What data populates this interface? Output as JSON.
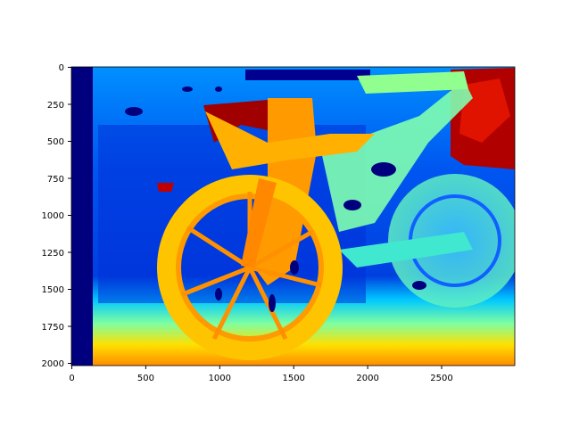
{
  "figure": {
    "image_description_icon": "depth-map-bicycle",
    "colormap": [
      "#00007f",
      "#0000ff",
      "#007fff",
      "#00ffff",
      "#7fff7f",
      "#ffff00",
      "#ff7f00",
      "#ff0000",
      "#7f0000"
    ]
  },
  "axes": {
    "x_ticks": [
      "0",
      "500",
      "1000",
      "1500",
      "2000",
      "2500"
    ],
    "y_ticks": [
      "0",
      "250",
      "500",
      "750",
      "1000",
      "1250",
      "1500",
      "1750",
      "2000"
    ]
  }
}
